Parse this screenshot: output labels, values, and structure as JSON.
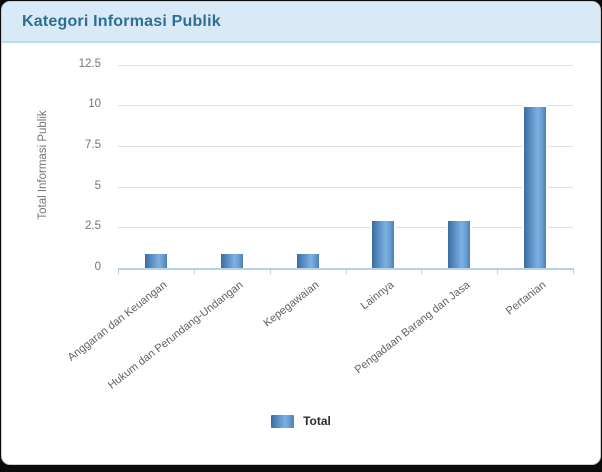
{
  "card": {
    "title": "Kategori Informasi Publik"
  },
  "chart_data": {
    "type": "bar",
    "title": "Kategori Informasi Publik",
    "xlabel": "",
    "ylabel": "Total Informasi Publik",
    "categories": [
      "Anggaran dan Keuangan",
      "Hukum dan Perundang-Undangan",
      "Kepegawaian",
      "Lainnya",
      "Pengadaan Barang dan Jasa",
      "Pertanian"
    ],
    "series": [
      {
        "name": "Total",
        "values": [
          1,
          1,
          1,
          3,
          3,
          10
        ]
      }
    ],
    "ylim": [
      0,
      12.5
    ],
    "ytick_labels": [
      "0",
      "2.5",
      "5",
      "7.5",
      "10",
      "12.5"
    ],
    "grid": "horizontal",
    "legend_position": "bottom"
  },
  "theme": {
    "page_bg": "#0b0b0b",
    "card_bg": "#ffffff",
    "header_bg": "#d9eaf6",
    "header_border": "#b9dcef",
    "title_color": "#2b7094",
    "grid_color": "#e0e0e0",
    "axis_line_color": "#b9d3e6",
    "ytick_text_color": "#757575",
    "xlabel_text_color": "#5f6368",
    "legend_text_color": "#2d2d2d",
    "bar_color_dark": "#3a6da1",
    "bar_color_light": "#7fb0df",
    "bar_color_edge": "#4d81b5"
  }
}
